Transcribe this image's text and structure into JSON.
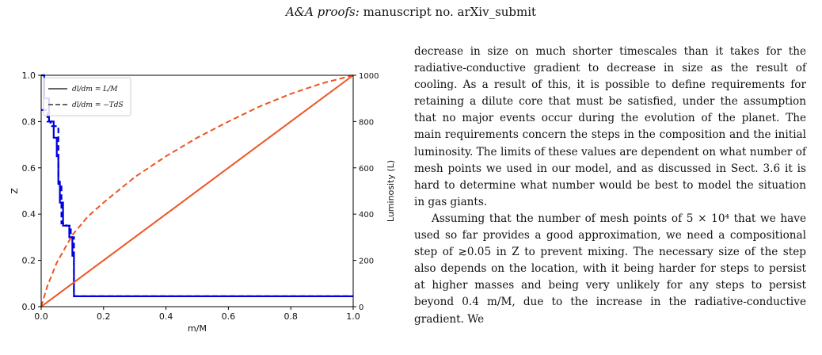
{
  "header": {
    "italic": "A&A proofs:",
    "rest": " manuscript no. arXiv_submit"
  },
  "paragraphs": [
    "decrease in size on much shorter timescales than it takes for the radiative-conductive gradient to decrease in size as the result of cooling. As a result of this, it is possible to define requirements for retaining a dilute core that must be satisfied, under the assumption that no major events occur during the evolution of the planet. The main requirements concern the steps in the composition and the initial luminosity. The limits of these values are dependent on what number of mesh points we used in our model, and as discussed in Sect. 3.6 it is hard to determine what number would be best to model the situation in gas giants.",
    "Assuming that the number of mesh points of 5 × 10⁴ that we have used so far provides a good approximation, we need a compositional step of ≳0.05 in Z to prevent mixing. The necessary size of the step also depends on the location, with it being harder for steps to persist at higher masses and being very unlikely for any steps to persist beyond 0.4 m/M, due to the increase in the radiative-conductive gradient. We"
  ],
  "chart_data": {
    "type": "line",
    "xlabel": "m/M",
    "ylabel_left": "Z",
    "ylabel_right": "Luminosity (L)",
    "xlim": [
      0,
      1
    ],
    "ylim_left": [
      0,
      1
    ],
    "ylim_right": [
      0,
      1000
    ],
    "xticks": [
      "0.0",
      "0.2",
      "0.4",
      "0.6",
      "0.8",
      "1.0"
    ],
    "yticks_left": [
      "0.0",
      "0.2",
      "0.4",
      "0.6",
      "0.8",
      "1.0"
    ],
    "yticks_right": [
      "0",
      "200",
      "400",
      "600",
      "800",
      "1000"
    ],
    "grid": false,
    "legend_position": "top-left",
    "legend": [
      "dl/dm = L/M",
      "dl/dm = −TdS"
    ],
    "colors": {
      "composition": "#0000dd",
      "luminosity": "#ee5522",
      "legend_line": "#666666",
      "axes": "#000000"
    },
    "series": [
      {
        "name": "dl/dm = L/M",
        "axis": "left",
        "style": "solid-step",
        "color": "#0000dd",
        "x": [
          0.0,
          0.01,
          0.01,
          0.025,
          0.025,
          0.04,
          0.04,
          0.05,
          0.05,
          0.055,
          0.055,
          0.06,
          0.06,
          0.07,
          0.07,
          0.09,
          0.09,
          0.1,
          0.1,
          0.105,
          0.105,
          1.0
        ],
        "y": [
          1.0,
          1.0,
          0.9,
          0.9,
          0.8,
          0.8,
          0.73,
          0.73,
          0.65,
          0.65,
          0.54,
          0.54,
          0.45,
          0.45,
          0.35,
          0.35,
          0.3,
          0.3,
          0.22,
          0.22,
          0.045,
          0.045
        ]
      },
      {
        "name": "dl/dm = −TdS",
        "axis": "left",
        "style": "dashed-step",
        "color": "#0000dd",
        "x": [
          0.0,
          0.02,
          0.02,
          0.03,
          0.03,
          0.045,
          0.045,
          0.055,
          0.055,
          0.065,
          0.065,
          0.08,
          0.08,
          0.095,
          0.095,
          0.105,
          0.105,
          1.0
        ],
        "y": [
          0.85,
          0.85,
          0.8,
          0.8,
          0.78,
          0.78,
          0.78,
          0.78,
          0.53,
          0.53,
          0.36,
          0.36,
          0.35,
          0.35,
          0.3,
          0.3,
          0.045,
          0.045
        ]
      },
      {
        "name": "dl/dm = L/M",
        "axis": "right",
        "style": "solid",
        "color": "#ee5522",
        "x": [
          0.0,
          1.0
        ],
        "y": [
          0,
          1000
        ]
      },
      {
        "name": "dl/dm = −TdS",
        "axis": "right",
        "style": "dashed",
        "color": "#ee5522",
        "x": [
          0.0,
          0.02,
          0.05,
          0.1,
          0.15,
          0.2,
          0.3,
          0.4,
          0.5,
          0.6,
          0.7,
          0.8,
          0.9,
          1.0
        ],
        "y": [
          0,
          90,
          190,
          310,
          390,
          450,
          560,
          650,
          730,
          800,
          865,
          920,
          965,
          1000
        ]
      }
    ]
  }
}
